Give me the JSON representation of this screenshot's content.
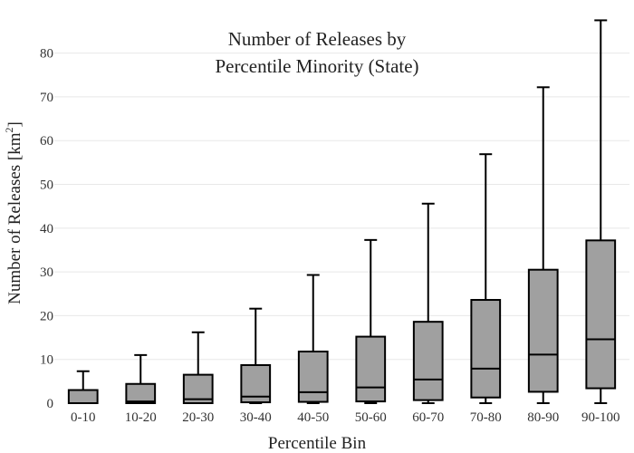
{
  "chart_data": {
    "type": "box",
    "title_line1": "Number of Releases by",
    "title_line2": "Percentile Minority (State)",
    "xlabel": "Percentile Bin",
    "ylabel": "Number of Releases  [km",
    "ylabel_sup": "2",
    "ylabel_close": "]",
    "ylim": [
      0,
      88
    ],
    "yticks": [
      0,
      10,
      20,
      30,
      40,
      50,
      60,
      70,
      80
    ],
    "grid": true,
    "colors": {
      "box_fill": "#a0a0a0",
      "stroke": "#000000",
      "grid": "#e8e8e8"
    },
    "categories": [
      "0-10",
      "10-20",
      "20-30",
      "30-40",
      "40-50",
      "50-60",
      "60-70",
      "70-80",
      "80-90",
      "90-100"
    ],
    "boxes": [
      {
        "min": 0,
        "q1": 0,
        "median": 0,
        "q3": 3,
        "max": 7.3
      },
      {
        "min": 0,
        "q1": 0,
        "median": 0.4,
        "q3": 4.4,
        "max": 11
      },
      {
        "min": 0,
        "q1": 0,
        "median": 0.9,
        "q3": 6.5,
        "max": 16.2
      },
      {
        "min": 0,
        "q1": 0.2,
        "median": 1.5,
        "q3": 8.7,
        "max": 21.6
      },
      {
        "min": 0,
        "q1": 0.3,
        "median": 2.5,
        "q3": 11.8,
        "max": 29.3
      },
      {
        "min": 0,
        "q1": 0.4,
        "median": 3.6,
        "q3": 15.2,
        "max": 37.3
      },
      {
        "min": 0,
        "q1": 0.7,
        "median": 5.4,
        "q3": 18.6,
        "max": 45.6
      },
      {
        "min": 0,
        "q1": 1.3,
        "median": 7.9,
        "q3": 23.6,
        "max": 56.9
      },
      {
        "min": 0,
        "q1": 2.6,
        "median": 11.1,
        "q3": 30.5,
        "max": 72.2
      },
      {
        "min": 0,
        "q1": 3.4,
        "median": 14.6,
        "q3": 37.2,
        "max": 87.5
      }
    ]
  }
}
